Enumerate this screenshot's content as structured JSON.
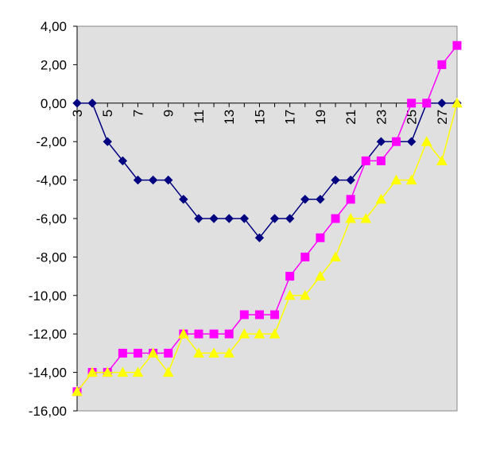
{
  "chart_data": {
    "type": "line",
    "title": "",
    "xlabel": "",
    "ylabel": "",
    "x": [
      3,
      4,
      5,
      6,
      7,
      8,
      9,
      10,
      11,
      12,
      13,
      14,
      15,
      16,
      17,
      18,
      19,
      20,
      21,
      22,
      23,
      24,
      25,
      26,
      27,
      28
    ],
    "x_tick_labels": [
      "3",
      "5",
      "7",
      "9",
      "11",
      "13",
      "15",
      "17",
      "19",
      "21",
      "23",
      "25",
      "27"
    ],
    "y_tick_labels": [
      "4,00",
      "2,00",
      "0,00",
      "-2,00",
      "-4,00",
      "-6,00",
      "-8,00",
      "-10,00",
      "-12,00",
      "-14,00",
      "-16,00"
    ],
    "ylim": [
      -16,
      4
    ],
    "xlim": [
      3,
      28
    ],
    "y_tick_step": 2,
    "grid": false,
    "legend": "none",
    "plot_background": "#e0e0e0",
    "series": [
      {
        "color": "#000080",
        "marker": "diamond",
        "values": [
          0,
          0,
          -2,
          -3,
          -4,
          -4,
          -4,
          -5,
          -6,
          -6,
          -6,
          -6,
          -7,
          -6,
          -6,
          -5,
          -5,
          -4,
          -4,
          -3,
          -2,
          -2,
          -2,
          0,
          0,
          0
        ]
      },
      {
        "color": "#ff00ff",
        "marker": "square",
        "values": [
          -15,
          -14,
          -14,
          -13,
          -13,
          -13,
          -13,
          -12,
          -12,
          -12,
          -12,
          -11,
          -11,
          -11,
          -9,
          -8,
          -7,
          -6,
          -5,
          -3,
          -3,
          -2,
          0,
          0,
          2,
          3
        ]
      },
      {
        "color": "#ffff00",
        "marker": "triangle",
        "values": [
          -15,
          -14,
          -14,
          -14,
          -14,
          -13,
          -14,
          -12,
          -13,
          -13,
          -13,
          -12,
          -12,
          -12,
          -10,
          -10,
          -9,
          -8,
          -6,
          -6,
          -5,
          -4,
          -4,
          -2,
          -3,
          0
        ]
      }
    ]
  }
}
